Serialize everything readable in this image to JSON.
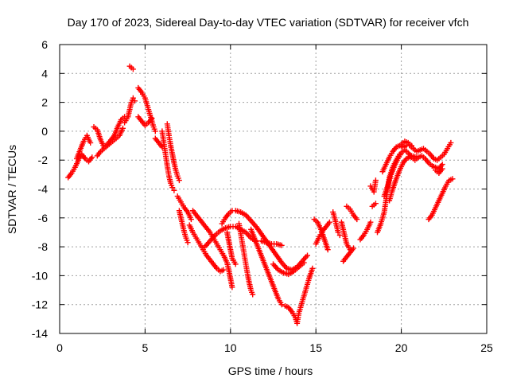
{
  "chart_data": {
    "type": "scatter",
    "title": "Day 170 of 2023, Sidereal Day-to-day VTEC variation (SDTVAR) for receiver vfch",
    "xlabel": "GPS time / hours",
    "ylabel": "SDTVAR / TECUs",
    "xlim": [
      0,
      25
    ],
    "ylim": [
      -14,
      6
    ],
    "xticks": [
      0,
      5,
      10,
      15,
      20,
      25
    ],
    "yticks": [
      6,
      4,
      2,
      0,
      -2,
      -4,
      -6,
      -8,
      -10,
      -12,
      -14
    ],
    "grid": true,
    "marker": "plus",
    "color": "#ff0000",
    "tracks": [
      [
        [
          0.5,
          -3.2
        ],
        [
          0.7,
          -2.9
        ],
        [
          0.9,
          -2.5
        ],
        [
          1.1,
          -2.0
        ],
        [
          1.3,
          -1.6
        ],
        [
          1.5,
          -1.9
        ],
        [
          1.7,
          -2.1
        ],
        [
          1.9,
          -1.8
        ]
      ],
      [
        [
          1.0,
          -1.9
        ],
        [
          1.2,
          -1.3
        ],
        [
          1.4,
          -0.7
        ],
        [
          1.6,
          -0.3
        ],
        [
          1.8,
          -0.8
        ]
      ],
      [
        [
          2.0,
          0.3
        ],
        [
          2.2,
          0.1
        ],
        [
          2.4,
          -0.6
        ],
        [
          2.6,
          -1.1
        ],
        [
          2.8,
          -0.9
        ],
        [
          3.0,
          -0.6
        ],
        [
          3.2,
          -0.3
        ],
        [
          3.4,
          0.3
        ],
        [
          3.6,
          0.8
        ],
        [
          3.8,
          1.0
        ]
      ],
      [
        [
          2.2,
          -1.7
        ],
        [
          2.4,
          -1.4
        ],
        [
          2.6,
          -1.2
        ],
        [
          2.8,
          -1.0
        ],
        [
          3.0,
          -0.8
        ],
        [
          3.2,
          -0.6
        ],
        [
          3.5,
          -0.3
        ],
        [
          3.7,
          0.2
        ]
      ],
      [
        [
          3.8,
          0.6
        ],
        [
          4.0,
          1.0
        ],
        [
          4.1,
          1.5
        ],
        [
          4.2,
          2.0
        ],
        [
          4.3,
          2.3
        ],
        [
          4.4,
          2.1
        ]
      ],
      [
        [
          4.1,
          4.5
        ],
        [
          4.2,
          4.4
        ],
        [
          4.3,
          4.3
        ]
      ],
      [
        [
          4.6,
          1.0
        ],
        [
          4.8,
          0.7
        ],
        [
          5.0,
          0.4
        ],
        [
          5.2,
          0.6
        ],
        [
          5.4,
          0.9
        ]
      ],
      [
        [
          4.6,
          3.0
        ],
        [
          4.8,
          2.7
        ],
        [
          5.0,
          2.3
        ],
        [
          5.1,
          1.9
        ],
        [
          5.2,
          1.5
        ],
        [
          5.3,
          1.1
        ],
        [
          5.4,
          0.7
        ],
        [
          5.5,
          0.3
        ],
        [
          5.6,
          0.0
        ]
      ],
      [
        [
          5.6,
          -0.5
        ],
        [
          5.8,
          -0.8
        ],
        [
          6.0,
          -1.1
        ]
      ],
      [
        [
          6.0,
          0.0
        ],
        [
          6.1,
          -0.8
        ],
        [
          6.2,
          -1.6
        ],
        [
          6.3,
          -2.4
        ],
        [
          6.4,
          -3.1
        ],
        [
          6.5,
          -3.6
        ],
        [
          6.6,
          -3.9
        ],
        [
          6.7,
          -4.1
        ]
      ],
      [
        [
          6.3,
          0.5
        ],
        [
          6.4,
          -0.3
        ],
        [
          6.5,
          -1.0
        ],
        [
          6.6,
          -1.6
        ],
        [
          6.7,
          -2.2
        ],
        [
          6.8,
          -2.7
        ],
        [
          6.9,
          -3.1
        ],
        [
          7.0,
          -3.4
        ]
      ],
      [
        [
          6.9,
          -4.5
        ],
        [
          7.1,
          -4.9
        ],
        [
          7.3,
          -5.3
        ],
        [
          7.5,
          -5.6
        ],
        [
          7.7,
          -6.1
        ]
      ],
      [
        [
          7.0,
          -5.5
        ],
        [
          7.1,
          -6.0
        ],
        [
          7.2,
          -6.5
        ],
        [
          7.3,
          -7.0
        ],
        [
          7.4,
          -7.4
        ],
        [
          7.5,
          -7.7
        ]
      ],
      [
        [
          7.6,
          -6.5
        ],
        [
          7.8,
          -7.0
        ],
        [
          8.0,
          -7.4
        ],
        [
          8.2,
          -7.8
        ],
        [
          8.4,
          -8.2
        ],
        [
          8.6,
          -8.6
        ],
        [
          8.8,
          -8.9
        ],
        [
          9.0,
          -9.2
        ],
        [
          9.2,
          -9.5
        ],
        [
          9.4,
          -9.7
        ],
        [
          9.6,
          -9.6
        ]
      ],
      [
        [
          7.8,
          -5.5
        ],
        [
          8.0,
          -5.8
        ],
        [
          8.2,
          -6.1
        ],
        [
          8.4,
          -6.4
        ],
        [
          8.6,
          -6.7
        ],
        [
          8.8,
          -7.0
        ],
        [
          9.0,
          -7.4
        ],
        [
          9.2,
          -7.8
        ],
        [
          9.4,
          -8.2
        ],
        [
          9.6,
          -8.6
        ],
        [
          9.8,
          -9.1
        ],
        [
          9.9,
          -9.6
        ],
        [
          10.0,
          -10.2
        ],
        [
          10.1,
          -10.8
        ]
      ],
      [
        [
          8.5,
          -8.0
        ],
        [
          8.8,
          -7.6
        ],
        [
          9.1,
          -7.2
        ],
        [
          9.4,
          -6.9
        ],
        [
          9.7,
          -6.7
        ],
        [
          10.0,
          -6.6
        ],
        [
          10.3,
          -6.6
        ],
        [
          10.6,
          -6.8
        ],
        [
          10.9,
          -7.0
        ],
        [
          11.2,
          -7.4
        ],
        [
          11.5,
          -7.6
        ]
      ],
      [
        [
          9.5,
          -6.4
        ],
        [
          9.7,
          -6.0
        ],
        [
          9.9,
          -5.7
        ],
        [
          10.1,
          -5.5
        ],
        [
          10.3,
          -5.5
        ],
        [
          10.6,
          -5.6
        ],
        [
          10.9,
          -5.8
        ],
        [
          11.2,
          -6.2
        ],
        [
          11.5,
          -6.6
        ],
        [
          11.8,
          -7.1
        ],
        [
          12.1,
          -7.6
        ],
        [
          12.4,
          -8.1
        ],
        [
          12.7,
          -8.6
        ],
        [
          13.0,
          -9.1
        ],
        [
          13.3,
          -9.5
        ],
        [
          13.6,
          -9.6
        ],
        [
          13.9,
          -9.4
        ],
        [
          14.2,
          -9.0
        ],
        [
          14.5,
          -8.6
        ]
      ],
      [
        [
          9.8,
          -7.0
        ],
        [
          9.9,
          -7.6
        ],
        [
          10.0,
          -8.2
        ],
        [
          10.1,
          -8.8
        ],
        [
          10.3,
          -9.2
        ]
      ],
      [
        [
          10.5,
          -6.4
        ],
        [
          10.6,
          -7.1
        ],
        [
          10.7,
          -7.8
        ],
        [
          10.8,
          -8.5
        ],
        [
          10.9,
          -9.2
        ],
        [
          11.0,
          -9.9
        ],
        [
          11.1,
          -10.5
        ],
        [
          11.2,
          -11.0
        ],
        [
          11.3,
          -11.3
        ]
      ],
      [
        [
          11.2,
          -6.8
        ],
        [
          11.4,
          -7.4
        ],
        [
          11.6,
          -8.0
        ],
        [
          11.8,
          -8.6
        ],
        [
          12.0,
          -9.2
        ],
        [
          12.2,
          -9.8
        ],
        [
          12.4,
          -10.4
        ],
        [
          12.6,
          -11.0
        ],
        [
          12.8,
          -11.6
        ],
        [
          13.0,
          -12.0
        ]
      ],
      [
        [
          11.8,
          -7.6
        ],
        [
          12.1,
          -7.7
        ],
        [
          12.4,
          -7.8
        ],
        [
          12.7,
          -7.8
        ],
        [
          13.0,
          -7.9
        ]
      ],
      [
        [
          12.5,
          -9.2
        ],
        [
          12.8,
          -9.6
        ],
        [
          13.1,
          -9.8
        ],
        [
          13.4,
          -9.9
        ],
        [
          13.7,
          -9.7
        ],
        [
          14.0,
          -9.4
        ],
        [
          14.3,
          -9.1
        ]
      ],
      [
        [
          13.2,
          -12.1
        ],
        [
          13.4,
          -12.2
        ],
        [
          13.6,
          -12.5
        ],
        [
          13.8,
          -12.9
        ],
        [
          13.9,
          -13.3
        ],
        [
          14.0,
          -12.6
        ],
        [
          14.2,
          -11.8
        ],
        [
          14.4,
          -11.0
        ],
        [
          14.6,
          -10.2
        ],
        [
          14.8,
          -9.5
        ]
      ],
      [
        [
          15.0,
          -7.8
        ],
        [
          15.2,
          -7.3
        ],
        [
          15.4,
          -6.9
        ],
        [
          15.6,
          -6.6
        ],
        [
          15.8,
          -6.3
        ]
      ],
      [
        [
          14.9,
          -6.1
        ],
        [
          15.1,
          -6.3
        ],
        [
          15.3,
          -6.8
        ],
        [
          15.5,
          -7.5
        ],
        [
          15.7,
          -8.2
        ]
      ],
      [
        [
          16.0,
          -5.6
        ],
        [
          16.1,
          -6.0
        ],
        [
          16.2,
          -6.5
        ],
        [
          16.3,
          -7.0
        ],
        [
          16.4,
          -7.2
        ]
      ],
      [
        [
          16.5,
          -6.3
        ],
        [
          16.6,
          -6.8
        ],
        [
          16.7,
          -7.3
        ],
        [
          16.8,
          -7.8
        ],
        [
          17.0,
          -8.2
        ]
      ],
      [
        [
          16.6,
          -9.0
        ],
        [
          16.8,
          -8.7
        ],
        [
          17.0,
          -8.4
        ],
        [
          17.2,
          -8.1
        ]
      ],
      [
        [
          16.8,
          -5.2
        ],
        [
          17.0,
          -5.4
        ],
        [
          17.2,
          -5.8
        ],
        [
          17.4,
          -6.1
        ]
      ],
      [
        [
          17.6,
          -7.5
        ],
        [
          17.8,
          -7.2
        ],
        [
          18.0,
          -6.8
        ],
        [
          18.2,
          -6.3
        ]
      ],
      [
        [
          18.3,
          -5.2
        ],
        [
          18.5,
          -5.0
        ]
      ],
      [
        [
          18.2,
          -3.8
        ],
        [
          18.4,
          -4.2
        ],
        [
          18.5,
          -3.4
        ]
      ],
      [
        [
          18.6,
          -7.0
        ],
        [
          18.8,
          -6.4
        ],
        [
          19.0,
          -5.6
        ],
        [
          19.1,
          -4.8
        ],
        [
          19.2,
          -4.0
        ],
        [
          19.3,
          -3.2
        ],
        [
          19.5,
          -2.5
        ],
        [
          19.7,
          -2.0
        ],
        [
          19.9,
          -1.6
        ]
      ],
      [
        [
          18.9,
          -2.8
        ],
        [
          19.1,
          -2.3
        ],
        [
          19.3,
          -1.8
        ],
        [
          19.5,
          -1.4
        ],
        [
          19.7,
          -1.1
        ],
        [
          19.9,
          -1.0
        ],
        [
          20.1,
          -1.1
        ],
        [
          20.3,
          -1.0
        ],
        [
          20.5,
          -1.0
        ],
        [
          20.7,
          -1.2
        ],
        [
          20.9,
          -1.4
        ],
        [
          21.1,
          -1.3
        ],
        [
          21.3,
          -1.2
        ],
        [
          21.5,
          -1.4
        ],
        [
          21.7,
          -1.6
        ],
        [
          21.9,
          -1.9
        ],
        [
          22.1,
          -2.0
        ],
        [
          22.3,
          -1.8
        ],
        [
          22.5,
          -1.6
        ],
        [
          22.7,
          -1.2
        ],
        [
          22.9,
          -0.8
        ]
      ],
      [
        [
          19.0,
          -4.5
        ],
        [
          19.2,
          -3.8
        ],
        [
          19.4,
          -3.0
        ],
        [
          19.6,
          -2.4
        ],
        [
          19.8,
          -1.9
        ],
        [
          20.0,
          -1.5
        ],
        [
          20.2,
          -1.3
        ],
        [
          20.4,
          -1.5
        ],
        [
          20.6,
          -1.8
        ],
        [
          20.8,
          -2.0
        ],
        [
          21.0,
          -1.8
        ],
        [
          21.2,
          -1.7
        ],
        [
          21.4,
          -1.9
        ],
        [
          21.6,
          -2.2
        ],
        [
          21.8,
          -2.4
        ],
        [
          22.0,
          -2.5
        ],
        [
          22.2,
          -2.6
        ],
        [
          22.4,
          -2.3
        ]
      ],
      [
        [
          19.3,
          -4.8
        ],
        [
          19.5,
          -4.0
        ],
        [
          19.7,
          -3.3
        ],
        [
          19.9,
          -2.7
        ],
        [
          20.1,
          -2.2
        ],
        [
          20.3,
          -1.9
        ],
        [
          20.6,
          -1.7
        ],
        [
          20.9,
          -1.8
        ]
      ],
      [
        [
          20.0,
          -0.9
        ],
        [
          20.2,
          -0.7
        ],
        [
          20.4,
          -0.8
        ],
        [
          20.6,
          -1.0
        ]
      ],
      [
        [
          21.6,
          -6.1
        ],
        [
          21.8,
          -5.8
        ],
        [
          22.0,
          -5.3
        ],
        [
          22.2,
          -4.8
        ],
        [
          22.4,
          -4.3
        ],
        [
          22.6,
          -3.8
        ],
        [
          22.8,
          -3.4
        ],
        [
          23.0,
          -3.3
        ]
      ],
      [
        [
          22.0,
          -2.7
        ],
        [
          22.2,
          -2.9
        ],
        [
          22.4,
          -2.6
        ]
      ]
    ]
  }
}
